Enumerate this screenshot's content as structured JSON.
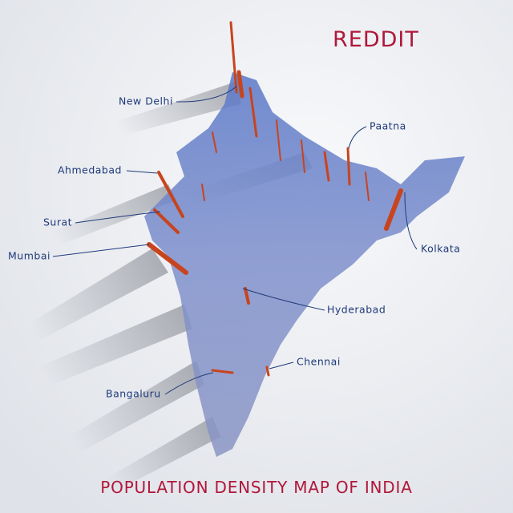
{
  "header": {
    "title": "REDDIT"
  },
  "footer": {
    "title": "POPULATION DENSITY MAP OF INDIA"
  },
  "cities": [
    {
      "label": "New Delhi"
    },
    {
      "label": "Paatna"
    },
    {
      "label": "Ahmedabad"
    },
    {
      "label": "Surat"
    },
    {
      "label": "Mumbai"
    },
    {
      "label": "Kolkata"
    },
    {
      "label": "Hyderabad"
    },
    {
      "label": "Chennai"
    },
    {
      "label": "Bangaluru"
    }
  ]
}
